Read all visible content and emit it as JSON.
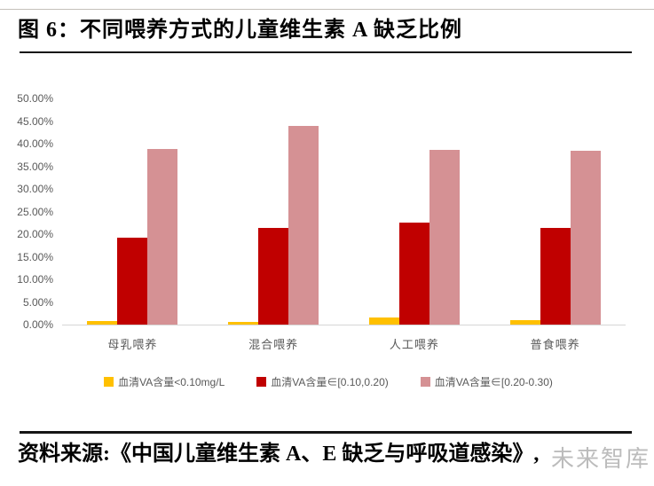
{
  "page": {
    "title": "图 6：不同喂养方式的儿童维生素 A 缺乏比例",
    "source": "资料来源:《中国儿童维生素 A、E 缺乏与呼吸道感染》,",
    "watermark": "未来智库"
  },
  "chart_data": {
    "type": "bar",
    "title": "不同喂养方式的儿童维生素 A 缺乏比例",
    "categories": [
      "母乳喂养",
      "混合喂养",
      "人工喂养",
      "普食喂养"
    ],
    "series": [
      {
        "name": "血清VA含量<0.10mg/L",
        "color": "#FFC000",
        "values": [
          0.8,
          0.5,
          1.5,
          1.0
        ]
      },
      {
        "name": "血清VA含量∈[0.10,0.20)",
        "color": "#C00000",
        "values": [
          19.3,
          21.3,
          22.5,
          21.4
        ]
      },
      {
        "name": "血清VA含量∈[0.20-0.30)",
        "color": "#D59194",
        "values": [
          38.8,
          44.0,
          38.6,
          38.5
        ]
      }
    ],
    "xlabel": "",
    "ylabel": "",
    "ylim": [
      0,
      50
    ],
    "ytick_step": 5,
    "ytick_format": "0.00%",
    "grid": false,
    "legend_position": "bottom",
    "axis_line_color": "#d6d6d6",
    "tick_text_color": "#595959"
  }
}
